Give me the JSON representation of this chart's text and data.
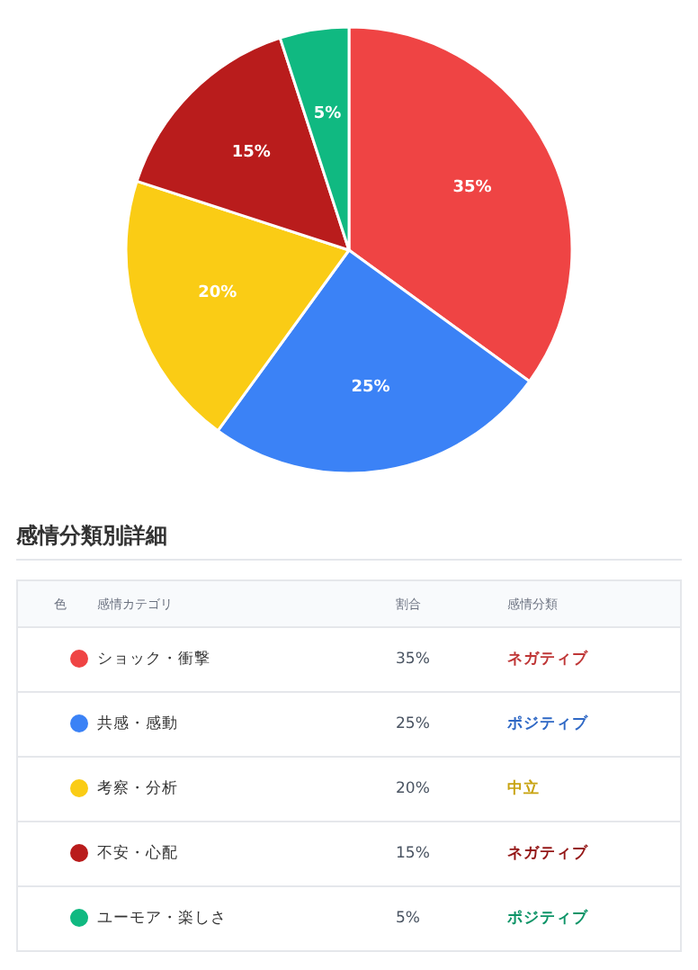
{
  "chart_data": {
    "type": "pie",
    "categories": [
      "ショック・衝撃",
      "共感・感動",
      "考察・分析",
      "不安・心配",
      "ユーモア・楽しさ"
    ],
    "values": [
      35,
      25,
      20,
      15,
      5
    ],
    "value_labels": [
      "35%",
      "25%",
      "20%",
      "15%",
      "5%"
    ],
    "legend": "bottom",
    "colors": [
      "#ef4444",
      "#3b82f6",
      "#facc15",
      "#b91c1c",
      "#10b981"
    ],
    "annotations": [
      "感情分類別詳細",
      "色",
      "感情カテゴリ",
      "割合",
      "感情分類",
      "ネガティブ",
      "ポジティブ",
      "中立",
      "ネガティブ",
      "ポジティブ"
    ]
  }
}
